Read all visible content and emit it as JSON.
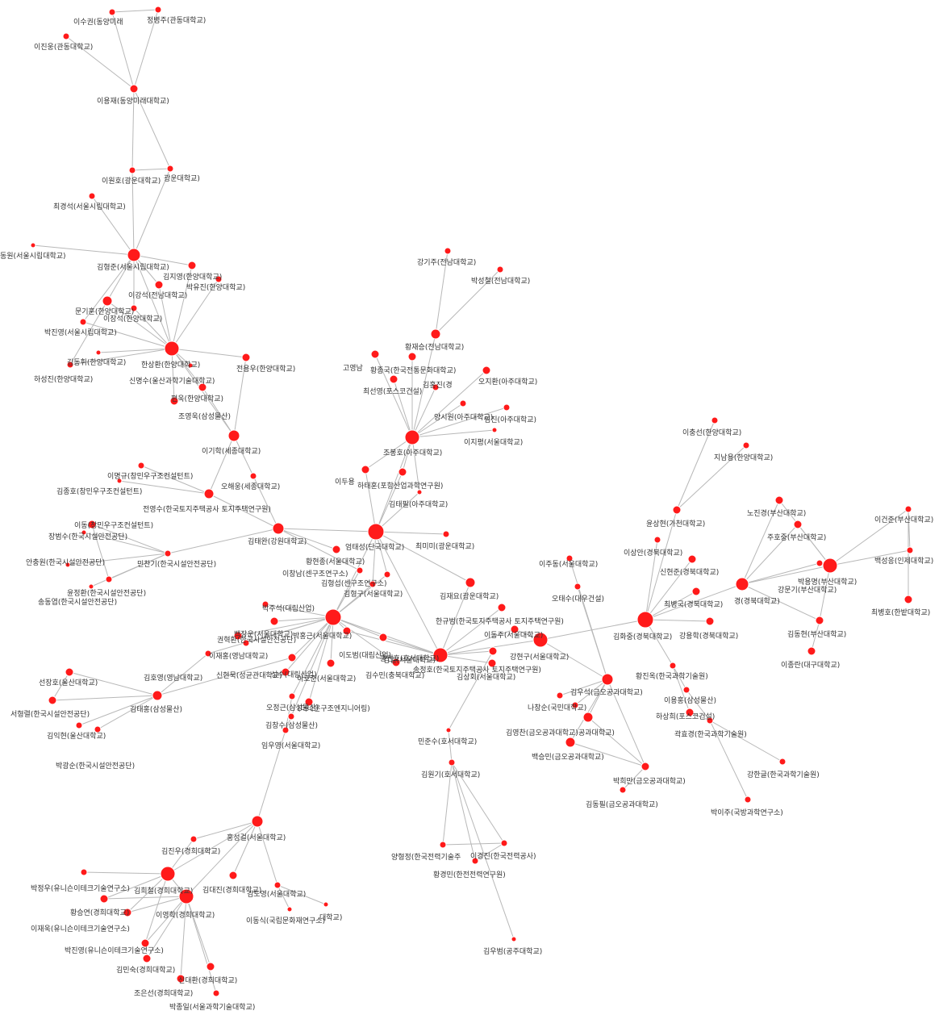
{
  "colors": {
    "node": "#ff1a1a",
    "edge": "#b8b8b8",
    "label": "#333333",
    "background": "#ffffff"
  },
  "nodes": [
    {
      "id": "n1",
      "label": "정병주(관동대학교)"
    },
    {
      "id": "n2",
      "label": "이수권(동양미래"
    },
    {
      "id": "n3",
      "label": "이진웅(관동대학교)"
    },
    {
      "id": "n4",
      "label": "이용재(동양미래대학교)"
    },
    {
      "id": "n5",
      "label": "광운대학교)"
    },
    {
      "id": "n6",
      "label": "이원호(광운대학교)"
    },
    {
      "id": "n7",
      "label": "최경석(서울시립대학교)"
    },
    {
      "id": "n8",
      "label": "동원(서울시립대학교)"
    },
    {
      "id": "n9",
      "label": "김형준(서울시립대학교)"
    },
    {
      "id": "n10",
      "label": "김지영(한양대학교)"
    },
    {
      "id": "n11",
      "label": "박유진(한양대학교)"
    },
    {
      "id": "n12",
      "label": "이강석(전남대학교)"
    },
    {
      "id": "n13",
      "label": "문기훈(한양대학교)"
    },
    {
      "id": "n14",
      "label": "이장석(한양대학교)"
    },
    {
      "id": "n15",
      "label": "박진영(서울시립대학교)"
    },
    {
      "id": "n16",
      "label": "김동휘(한양대학교)"
    },
    {
      "id": "n17",
      "label": "하성진(한양대학교)"
    },
    {
      "id": "n18",
      "label": "한상환(한양대학교)"
    },
    {
      "id": "n19",
      "label": "전용우(한양대학교)"
    },
    {
      "id": "n20",
      "label": "조영욱(삼성물산)"
    },
    {
      "id": "n21",
      "label": "편욱(한양대학교)"
    },
    {
      "id": "n22",
      "label": "신명수(울산과학기술대학교)"
    },
    {
      "id": "n23",
      "label": "이기학(세종대학교)"
    },
    {
      "id": "n24",
      "label": "이명규(창민우구조컨설턴트)"
    },
    {
      "id": "n25",
      "label": "김종호(창민우구조컨설턴트)"
    },
    {
      "id": "n26",
      "label": "오해웅(세종대학교)"
    },
    {
      "id": "n27",
      "label": "전영수(한국토지주택공사 토지주택연구원)"
    },
    {
      "id": "n28",
      "label": "이동(창민우구조컨설턴트)"
    },
    {
      "id": "n29",
      "label": "장범수(한국시설안전공단)"
    },
    {
      "id": "n30",
      "label": "김태완(강원대학교)"
    },
    {
      "id": "n31",
      "label": "안충원(한국시설안전공단)"
    },
    {
      "id": "n32",
      "label": "민찬기(한국시설안전공단)"
    },
    {
      "id": "n33",
      "label": "윤정환(한국시설안전공단)"
    },
    {
      "id": "n34",
      "label": "송동엽(한국시설안전공단)"
    },
    {
      "id": "n35",
      "label": "강기주(전남대학교)"
    },
    {
      "id": "n36",
      "label": "박성철(전남대학교)"
    },
    {
      "id": "n37",
      "label": "황재승(전남대학교)"
    },
    {
      "id": "n38",
      "label": "고영남"
    },
    {
      "id": "n39",
      "label": "황종국(한국전통문화대학교)"
    },
    {
      "id": "n40",
      "label": "김홍진(경"
    },
    {
      "id": "n41",
      "label": "오지환(아주대학교)"
    },
    {
      "id": "n42",
      "label": "최선영(포스코건설)"
    },
    {
      "id": "n43",
      "label": "양시원(아주대학교)"
    },
    {
      "id": "n44",
      "label": "임진(아주대학교)"
    },
    {
      "id": "n45",
      "label": "이지평(서울대학교)"
    },
    {
      "id": "n46",
      "label": "조봉호(아주대학교)"
    },
    {
      "id": "n47",
      "label": "이두용"
    },
    {
      "id": "n48",
      "label": "하태훈(포항산업과학연구원)"
    },
    {
      "id": "n49",
      "label": "김태필(아주대학교)"
    },
    {
      "id": "n50",
      "label": "엄태성(단국대학교)"
    },
    {
      "id": "n51",
      "label": "최미미(광운대학교)"
    },
    {
      "id": "n52",
      "label": "황현종(서울대학교)"
    },
    {
      "id": "n53",
      "label": "이창남(센구조연구소)"
    },
    {
      "id": "n54",
      "label": "김형섭(센구조연구소)"
    },
    {
      "id": "n55",
      "label": "김형구(서울대학교)"
    },
    {
      "id": "n56",
      "label": "김재요(광운대학교)"
    },
    {
      "id": "n57",
      "label": "박주석(대림산업)"
    },
    {
      "id": "n58",
      "label": "백장운(서울대학교)"
    },
    {
      "id": "n59",
      "label": "권혁환(한국시설안전공단)"
    },
    {
      "id": "n60",
      "label": "박홍근(서울대학교)"
    },
    {
      "id": "n61",
      "label": "이도범(대림산업)"
    },
    {
      "id": "n62",
      "label": "김일(서울대학교)"
    },
    {
      "id": "n63",
      "label": "이재홍(영남대학교)"
    },
    {
      "id": "n64",
      "label": "한규범(한국토지주택공사 토지주택연구원)"
    },
    {
      "id": "n65",
      "label": "송정호(한국토지주택공사 토지주택연구원)"
    },
    {
      "id": "n66",
      "label": "이동주(서울대학교)"
    },
    {
      "id": "n67",
      "label": "강현구(서울대학교)"
    },
    {
      "id": "n68",
      "label": "김호영(영남대학교)"
    },
    {
      "id": "n69",
      "label": "신현묵(성균관대학교)"
    },
    {
      "id": "n70",
      "label": "이호준(서울대학교)"
    },
    {
      "id": "n71",
      "label": "성수(대림산업)"
    },
    {
      "id": "n72",
      "label": "김수민(충북대학교)"
    },
    {
      "id": "n73",
      "label": "홍건호(호서대학교)"
    },
    {
      "id": "n74",
      "label": "김상회(서울대학교)"
    },
    {
      "id": "n75",
      "label": "오정근(삼성물산)"
    },
    {
      "id": "n76",
      "label": "(더나은구조엔지니어링)"
    },
    {
      "id": "n77",
      "label": "김창수(삼성물산)"
    },
    {
      "id": "n78",
      "label": "임우영(서울대학교)"
    },
    {
      "id": "n79",
      "label": "선장호(울산대학교)"
    },
    {
      "id": "n80",
      "label": "서형렬(한국시설안전공단)"
    },
    {
      "id": "n81",
      "label": "김태홍(삼성물산)"
    },
    {
      "id": "n82",
      "label": "김익현(울산대학교)"
    },
    {
      "id": "n83",
      "label": "박광순(한국시설안전공단)"
    },
    {
      "id": "n84",
      "label": "민준수(호서대학교)"
    },
    {
      "id": "n85",
      "label": "김원기(호서대학교)"
    },
    {
      "id": "n86",
      "label": "양형정(한국전력기술주"
    },
    {
      "id": "n87",
      "label": "이경진(한국전력공사)"
    },
    {
      "id": "n88",
      "label": "황경민(한전전력연구원)"
    },
    {
      "id": "n89",
      "label": "김우범(공주대학교)"
    },
    {
      "id": "n90",
      "label": "이주동(서울대학교)"
    },
    {
      "id": "n91",
      "label": "오태수(대우건설)"
    },
    {
      "id": "n92",
      "label": "김우석(금오공과대학교)"
    },
    {
      "id": "n93",
      "label": "나창순(국민대학교)"
    },
    {
      "id": "n94",
      "label": "김영찬(금오공과대학교)"
    },
    {
      "id": "n95",
      "label": "공과대학교)"
    },
    {
      "id": "n96",
      "label": "백승민(금오공과대학교)"
    },
    {
      "id": "n97",
      "label": "박희만(금오공과대학교)"
    },
    {
      "id": "n98",
      "label": "김동필(금오공과대학교)"
    },
    {
      "id": "n99",
      "label": "이충선(한양대학교)"
    },
    {
      "id": "n100",
      "label": "지남용(한양대학교)"
    },
    {
      "id": "n101",
      "label": "윤상현(가천대학교)"
    },
    {
      "id": "n102",
      "label": "이상안(경북대학교)"
    },
    {
      "id": "n103",
      "label": "신현준(경북대학교)"
    },
    {
      "id": "n104",
      "label": "최병국(경북대학교)"
    },
    {
      "id": "n105",
      "label": "경(경북대학교)"
    },
    {
      "id": "n106",
      "label": "김화중(경북대학교)"
    },
    {
      "id": "n107",
      "label": "강용학(경북대학교)"
    },
    {
      "id": "n108",
      "label": "노진경(부산대학교)"
    },
    {
      "id": "n109",
      "label": "주호중(부산대학교)"
    },
    {
      "id": "n110",
      "label": "강문기(부산대학교)"
    },
    {
      "id": "n111",
      "label": "박용명(부산대학교)"
    },
    {
      "id": "n112",
      "label": "이건준(부산대학교)"
    },
    {
      "id": "n113",
      "label": "백성응(인제대학교)"
    },
    {
      "id": "n114",
      "label": "최병호(한밭대학교)"
    },
    {
      "id": "n115",
      "label": "김동현(부산대학교)"
    },
    {
      "id": "n116",
      "label": "이종란(대구대학교)"
    },
    {
      "id": "n117",
      "label": "황진옥(한국과학기술원)"
    },
    {
      "id": "n118",
      "label": "이용홍(삼성물산)"
    },
    {
      "id": "n119",
      "label": "하상희(포스코건설)"
    },
    {
      "id": "n120",
      "label": "곽효경(한국과학기술원)"
    },
    {
      "id": "n121",
      "label": "강한글(한국과학기술원)"
    },
    {
      "id": "n122",
      "label": "박이주(국방과학연구소)"
    },
    {
      "id": "n123",
      "label": "홍성걸(서울대학교)"
    },
    {
      "id": "n124",
      "label": "김진우(경희대학교)"
    },
    {
      "id": "n125",
      "label": "박정우(유니슨이테크기술연구소)"
    },
    {
      "id": "n126",
      "label": "김희철(경희대학교)"
    },
    {
      "id": "n127",
      "label": "김대진(경희대학교)"
    },
    {
      "id": "n128",
      "label": "김도영(서울대학교)"
    },
    {
      "id": "n129",
      "label": "황승연(경희대학교)"
    },
    {
      "id": "n130",
      "label": "이영학(경희대학교)"
    },
    {
      "id": "n131",
      "label": "대학교)"
    },
    {
      "id": "n132",
      "label": "이동식(국립문화재연구소)"
    },
    {
      "id": "n133",
      "label": "이재욱(유니슨이테크기술연구소)"
    },
    {
      "id": "n134",
      "label": "박진영(유니슨이테크기술연구소)"
    },
    {
      "id": "n135",
      "label": "김민숙(경희대학교)"
    },
    {
      "id": "n136",
      "label": "신대환(경희대학교)"
    },
    {
      "id": "n137",
      "label": "조은선(경희대학교)"
    },
    {
      "id": "n138",
      "label": "박종일(서울과학기술대학교)"
    }
  ],
  "edges": [
    [
      "n2",
      "n4"
    ],
    [
      "n1",
      "n4"
    ],
    [
      "n3",
      "n4"
    ],
    [
      "n1",
      "n2"
    ],
    [
      "n4",
      "n6"
    ],
    [
      "n4",
      "n5"
    ],
    [
      "n6",
      "n9"
    ],
    [
      "n5",
      "n9"
    ],
    [
      "n7",
      "n9"
    ],
    [
      "n6",
      "n5"
    ],
    [
      "n8",
      "n9"
    ],
    [
      "n9",
      "n18"
    ],
    [
      "n9",
      "n12"
    ],
    [
      "n9",
      "n13"
    ],
    [
      "n9",
      "n14"
    ],
    [
      "n9",
      "n10"
    ],
    [
      "n10",
      "n18"
    ],
    [
      "n11",
      "n18"
    ],
    [
      "n12",
      "n18"
    ],
    [
      "n13",
      "n18"
    ],
    [
      "n14",
      "n18"
    ],
    [
      "n15",
      "n18"
    ],
    [
      "n16",
      "n18"
    ],
    [
      "n17",
      "n18"
    ],
    [
      "n18",
      "n19"
    ],
    [
      "n18",
      "n20"
    ],
    [
      "n18",
      "n21"
    ],
    [
      "n18",
      "n22"
    ],
    [
      "n18",
      "n23"
    ],
    [
      "n15",
      "n9"
    ],
    [
      "n16",
      "n13"
    ],
    [
      "n20",
      "n23"
    ],
    [
      "n19",
      "n23"
    ],
    [
      "n23",
      "n26"
    ],
    [
      "n23",
      "n27"
    ],
    [
      "n26",
      "n30"
    ],
    [
      "n27",
      "n30"
    ],
    [
      "n24",
      "n27"
    ],
    [
      "n25",
      "n27"
    ],
    [
      "n28",
      "n32"
    ],
    [
      "n29",
      "n32"
    ],
    [
      "n30",
      "n32"
    ],
    [
      "n31",
      "n32"
    ],
    [
      "n33",
      "n32"
    ],
    [
      "n34",
      "n32"
    ],
    [
      "n33",
      "n28"
    ],
    [
      "n30",
      "n50"
    ],
    [
      "n30",
      "n53"
    ],
    [
      "n30",
      "n52"
    ],
    [
      "n35",
      "n37"
    ],
    [
      "n36",
      "n37"
    ],
    [
      "n37",
      "n46"
    ],
    [
      "n38",
      "n46"
    ],
    [
      "n39",
      "n46"
    ],
    [
      "n40",
      "n46"
    ],
    [
      "n41",
      "n46"
    ],
    [
      "n42",
      "n46"
    ],
    [
      "n43",
      "n46"
    ],
    [
      "n44",
      "n46"
    ],
    [
      "n45",
      "n46"
    ],
    [
      "n46",
      "n47"
    ],
    [
      "n46",
      "n48"
    ],
    [
      "n46",
      "n49"
    ],
    [
      "n46",
      "n50"
    ],
    [
      "n47",
      "n50"
    ],
    [
      "n48",
      "n50"
    ],
    [
      "n49",
      "n50"
    ],
    [
      "n50",
      "n51"
    ],
    [
      "n50",
      "n56"
    ],
    [
      "n50",
      "n60"
    ],
    [
      "n50",
      "n55"
    ],
    [
      "n50",
      "n54"
    ],
    [
      "n50",
      "n65"
    ],
    [
      "n56",
      "n65"
    ],
    [
      "n55",
      "n60"
    ],
    [
      "n54",
      "n60"
    ],
    [
      "n53",
      "n60"
    ],
    [
      "n57",
      "n60"
    ],
    [
      "n58",
      "n60"
    ],
    [
      "n59",
      "n60"
    ],
    [
      "n60",
      "n61"
    ],
    [
      "n60",
      "n62"
    ],
    [
      "n60",
      "n63"
    ],
    [
      "n60",
      "n65"
    ],
    [
      "n60",
      "n69"
    ],
    [
      "n60",
      "n70"
    ],
    [
      "n60",
      "n71"
    ],
    [
      "n60",
      "n72"
    ],
    [
      "n60",
      "n75"
    ],
    [
      "n60",
      "n76"
    ],
    [
      "n60",
      "n77"
    ],
    [
      "n60",
      "n68"
    ],
    [
      "n61",
      "n65"
    ],
    [
      "n62",
      "n65"
    ],
    [
      "n64",
      "n65"
    ],
    [
      "n65",
      "n66"
    ],
    [
      "n65",
      "n67"
    ],
    [
      "n65",
      "n73"
    ],
    [
      "n65",
      "n74"
    ],
    [
      "n67",
      "n66"
    ],
    [
      "n68",
      "n81"
    ],
    [
      "n69",
      "n81"
    ],
    [
      "n79",
      "n81"
    ],
    [
      "n80",
      "n81"
    ],
    [
      "n82",
      "n81"
    ],
    [
      "n83",
      "n81"
    ],
    [
      "n79",
      "n80"
    ],
    [
      "n77",
      "n78"
    ],
    [
      "n78",
      "n123"
    ],
    [
      "n75",
      "n78"
    ],
    [
      "n73",
      "n84"
    ],
    [
      "n84",
      "n85"
    ],
    [
      "n85",
      "n86"
    ],
    [
      "n85",
      "n87"
    ],
    [
      "n85",
      "n88"
    ],
    [
      "n85",
      "n89"
    ],
    [
      "n86",
      "n87"
    ],
    [
      "n87",
      "n88"
    ],
    [
      "n67",
      "n92"
    ],
    [
      "n90",
      "n92"
    ],
    [
      "n91",
      "n92"
    ],
    [
      "n92",
      "n93"
    ],
    [
      "n92",
      "n94"
    ],
    [
      "n92",
      "n95"
    ],
    [
      "n92",
      "n96"
    ],
    [
      "n92",
      "n97"
    ],
    [
      "n96",
      "n97"
    ],
    [
      "n95",
      "n97"
    ],
    [
      "n97",
      "n98"
    ],
    [
      "n67",
      "n106"
    ],
    [
      "n106",
      "n101"
    ],
    [
      "n99",
      "n101"
    ],
    [
      "n100",
      "n101"
    ],
    [
      "n102",
      "n106"
    ],
    [
      "n103",
      "n106"
    ],
    [
      "n104",
      "n106"
    ],
    [
      "n105",
      "n106"
    ],
    [
      "n106",
      "n107"
    ],
    [
      "n105",
      "n111"
    ],
    [
      "n105",
      "n109"
    ],
    [
      "n108",
      "n105"
    ],
    [
      "n110",
      "n105"
    ],
    [
      "n109",
      "n111"
    ],
    [
      "n108",
      "n111"
    ],
    [
      "n110",
      "n111"
    ],
    [
      "n111",
      "n115"
    ],
    [
      "n112",
      "n113"
    ],
    [
      "n112",
      "n114"
    ],
    [
      "n111",
      "n113"
    ],
    [
      "n111",
      "n112"
    ],
    [
      "n115",
      "n116"
    ],
    [
      "n105",
      "n115"
    ],
    [
      "n106",
      "n117"
    ],
    [
      "n117",
      "n118"
    ],
    [
      "n117",
      "n119"
    ],
    [
      "n118",
      "n120"
    ],
    [
      "n119",
      "n120"
    ],
    [
      "n120",
      "n121"
    ],
    [
      "n120",
      "n122"
    ],
    [
      "n123",
      "n124"
    ],
    [
      "n123",
      "n126"
    ],
    [
      "n123",
      "n127"
    ],
    [
      "n123",
      "n128"
    ],
    [
      "n123",
      "n130"
    ],
    [
      "n124",
      "n126"
    ],
    [
      "n125",
      "n126"
    ],
    [
      "n126",
      "n129"
    ],
    [
      "n126",
      "n130"
    ],
    [
      "n129",
      "n130"
    ],
    [
      "n130",
      "n133"
    ],
    [
      "n130",
      "n134"
    ],
    [
      "n130",
      "n135"
    ],
    [
      "n130",
      "n136"
    ],
    [
      "n130",
      "n137"
    ],
    [
      "n130",
      "n138"
    ],
    [
      "n128",
      "n131"
    ],
    [
      "n128",
      "n132"
    ],
    [
      "n126",
      "n133"
    ],
    [
      "n126",
      "n134"
    ]
  ]
}
